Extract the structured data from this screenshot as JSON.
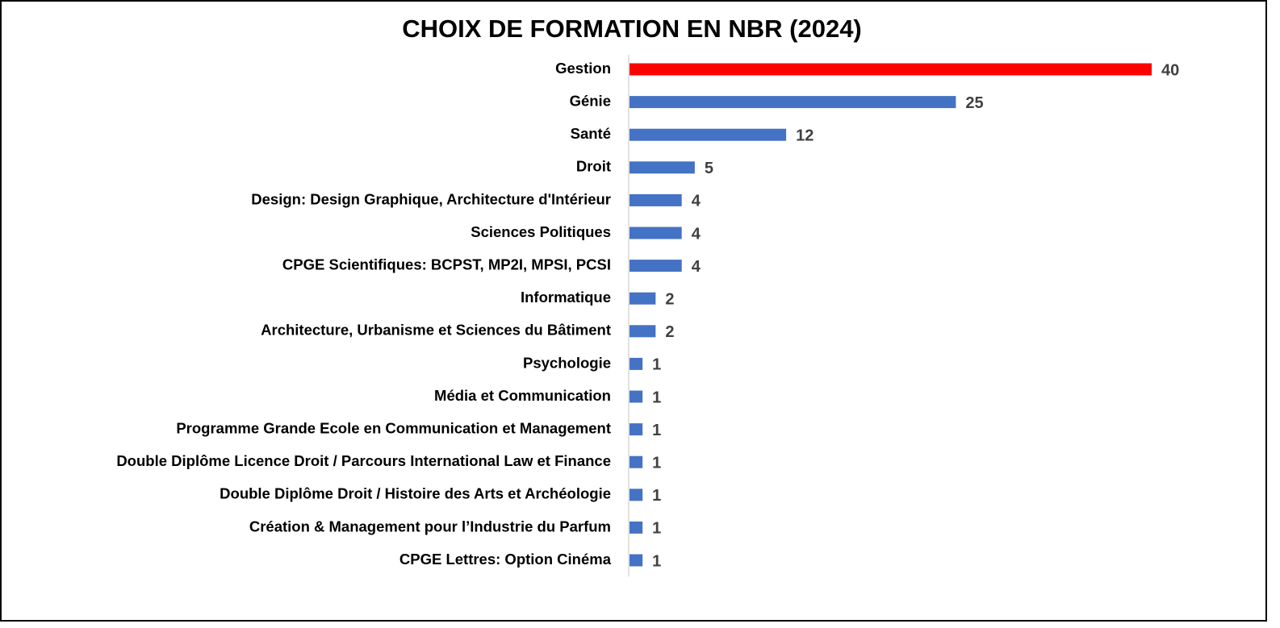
{
  "chart_data": {
    "type": "bar",
    "orientation": "horizontal",
    "title": "CHOIX DE FORMATION EN NBR (2024)",
    "xlabel": "",
    "ylabel": "",
    "grid": false,
    "legend": "none",
    "categories": [
      "Gestion",
      "Génie",
      "Santé",
      "Droit",
      "Design: Design Graphique, Architecture d'Intérieur",
      "Sciences Politiques",
      "CPGE Scientifiques: BCPST, MP2I, MPSI, PCSI",
      "Informatique",
      "Architecture, Urbanisme et Sciences du Bâtiment",
      "Psychologie",
      "Média et Communication",
      "Programme Grande Ecole en Communication et Management",
      "Double Diplôme Licence Droit / Parcours International Law et Finance",
      "Double Diplôme Droit / Histoire des Arts et Archéologie",
      "Création & Management pour l’Industrie du Parfum",
      "CPGE Lettres: Option Cinéma"
    ],
    "values": [
      40,
      25,
      12,
      5,
      4,
      4,
      4,
      2,
      2,
      1,
      1,
      1,
      1,
      1,
      1,
      1
    ],
    "xlim": [
      0,
      40
    ],
    "colors": {
      "highlight": "#FF0000",
      "default": "#4472C4",
      "axis": "#D9D9D9",
      "value_label": "#404040"
    },
    "highlight_index": 0
  }
}
